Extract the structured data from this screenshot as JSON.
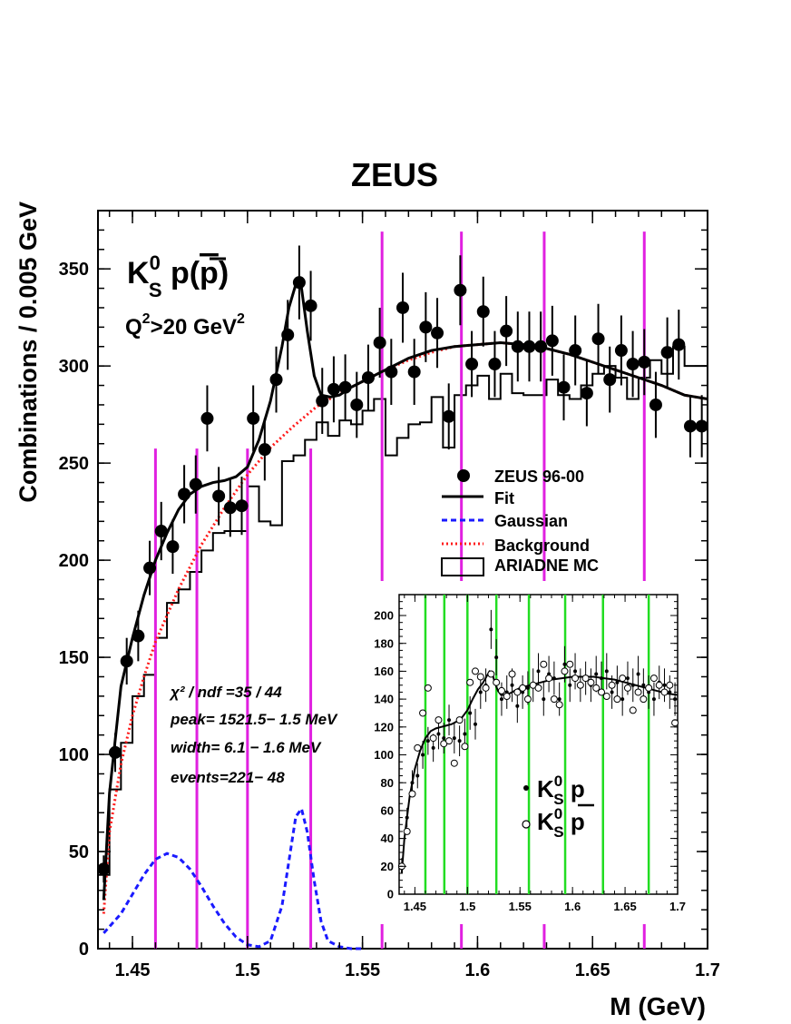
{
  "chart_data": [
    {
      "type": "scatter",
      "title": "ZEUS",
      "xlabel": "M (GeV)",
      "ylabel": "Combinations  / 0.005 GeV",
      "xlim": [
        1.435,
        1.7
      ],
      "ylim": [
        0,
        380
      ],
      "x_ticks": [
        "1.45",
        "1.5",
        "1.55",
        "1.6",
        "1.65",
        "1.7"
      ],
      "y_ticks": [
        "0",
        "50",
        "100",
        "150",
        "200",
        "250",
        "300",
        "350"
      ],
      "label_main": "K",
      "label_main_sup": "0",
      "label_main_sub": "S",
      "label_main_tail": " p(",
      "label_main_pbar": "p",
      "label_main_close": ")",
      "q2_label_prefix": "Q",
      "q2_sup": "2",
      "q2_mid": ">20 GeV",
      "q2_sup2": "2",
      "fit_stats": [
        "χ² / ndf  =35 / 44",
        "peak=  1521.5−  1.5  MeV",
        "width=  6.1   − 1.6  MeV",
        "events=221−   48"
      ],
      "legend": [
        {
          "label": "ZEUS 96-00",
          "style": "marker"
        },
        {
          "label": "Fit",
          "style": "solid-black"
        },
        {
          "label": "Gaussian",
          "style": "dashed-blue"
        },
        {
          "label": "Background",
          "style": "dotted-red"
        },
        {
          "label": "ARIADNE MC",
          "style": "box"
        }
      ],
      "series": [
        {
          "name": "ZEUS 96-00",
          "x": [
            1.4375,
            1.4425,
            1.4475,
            1.4525,
            1.4575,
            1.4625,
            1.4675,
            1.4725,
            1.4775,
            1.4825,
            1.4875,
            1.4925,
            1.4975,
            1.5025,
            1.5075,
            1.5125,
            1.5175,
            1.5225,
            1.5275,
            1.5325,
            1.5375,
            1.5425,
            1.5475,
            1.5525,
            1.5575,
            1.5625,
            1.5675,
            1.5725,
            1.5775,
            1.5825,
            1.5875,
            1.5925,
            1.5975,
            1.6025,
            1.6075,
            1.6125,
            1.6175,
            1.6225,
            1.6275,
            1.6325,
            1.6375,
            1.6425,
            1.6475,
            1.6525,
            1.6575,
            1.6625,
            1.6675,
            1.6725,
            1.6775,
            1.6825,
            1.6875,
            1.6925,
            1.6975
          ],
          "values": [
            41,
            101,
            148,
            161,
            196,
            215,
            207,
            234,
            239,
            273,
            233,
            227,
            228,
            273,
            257,
            293,
            316,
            343,
            331,
            282,
            288,
            289,
            280,
            294,
            312,
            297,
            330,
            297,
            320,
            317,
            274,
            339,
            301,
            328,
            301,
            318,
            310,
            310,
            310,
            313,
            289,
            308,
            286,
            314,
            293,
            308,
            301,
            302,
            280,
            307,
            311,
            269,
            269
          ],
          "errors": [
            7,
            10,
            12,
            13,
            14,
            15,
            14,
            15,
            15,
            17,
            15,
            15,
            15,
            17,
            16,
            17,
            18,
            19,
            18,
            17,
            17,
            17,
            17,
            17,
            18,
            17,
            18,
            17,
            18,
            18,
            17,
            18,
            17,
            18,
            17,
            18,
            18,
            18,
            18,
            18,
            17,
            18,
            17,
            18,
            17,
            18,
            17,
            17,
            17,
            18,
            18,
            16,
            16
          ]
        },
        {
          "name": "Fit",
          "x": [
            1.4375,
            1.44,
            1.445,
            1.45,
            1.455,
            1.46,
            1.465,
            1.47,
            1.475,
            1.48,
            1.485,
            1.49,
            1.495,
            1.5,
            1.505,
            1.51,
            1.515,
            1.518,
            1.521,
            1.5235,
            1.526,
            1.529,
            1.532,
            1.536,
            1.54,
            1.545,
            1.55,
            1.56,
            1.57,
            1.58,
            1.59,
            1.6,
            1.61,
            1.62,
            1.63,
            1.64,
            1.65,
            1.66,
            1.67,
            1.68,
            1.69,
            1.7
          ],
          "values": [
            25,
            80,
            135,
            160,
            182,
            200,
            214,
            226,
            234,
            238,
            240,
            241,
            243,
            248,
            262,
            282,
            310,
            330,
            342,
            340,
            318,
            295,
            285,
            284,
            285,
            289,
            292,
            298,
            304,
            308,
            310,
            311,
            312,
            311,
            309,
            306,
            302,
            298,
            294,
            290,
            285,
            283
          ]
        },
        {
          "name": "Gaussian",
          "x": [
            1.4375,
            1.445,
            1.45,
            1.455,
            1.46,
            1.465,
            1.47,
            1.475,
            1.48,
            1.485,
            1.49,
            1.495,
            1.5,
            1.505,
            1.51,
            1.515,
            1.518,
            1.521,
            1.5235,
            1.526,
            1.529,
            1.532,
            1.535,
            1.54,
            1.545,
            1.55
          ],
          "values": [
            8,
            18,
            28,
            38,
            46,
            49,
            47,
            41,
            32,
            22,
            13,
            6,
            2,
            1,
            4,
            22,
            45,
            68,
            72,
            60,
            35,
            14,
            4,
            1,
            0,
            0
          ]
        },
        {
          "name": "Background",
          "x": [
            1.4375,
            1.44,
            1.445,
            1.45,
            1.455,
            1.46,
            1.47,
            1.48,
            1.49,
            1.5,
            1.51,
            1.52,
            1.53,
            1.54,
            1.55,
            1.56,
            1.57,
            1.58,
            1.59,
            1.6,
            1.61,
            1.62,
            1.63,
            1.64,
            1.65,
            1.66,
            1.67,
            1.68,
            1.69,
            1.7
          ],
          "values": [
            18,
            60,
            95,
            120,
            140,
            158,
            185,
            208,
            227,
            244,
            258,
            269,
            279,
            286,
            292,
            298,
            303,
            307,
            310,
            311,
            312,
            311,
            309,
            306,
            302,
            298,
            294,
            290,
            285,
            283
          ]
        },
        {
          "name": "ARIADNE MC",
          "x": [
            1.435,
            1.44,
            1.445,
            1.45,
            1.455,
            1.46,
            1.465,
            1.47,
            1.475,
            1.48,
            1.485,
            1.49,
            1.495,
            1.5,
            1.505,
            1.51,
            1.515,
            1.52,
            1.525,
            1.53,
            1.535,
            1.54,
            1.545,
            1.55,
            1.555,
            1.56,
            1.565,
            1.57,
            1.575,
            1.58,
            1.585,
            1.59,
            1.595,
            1.6,
            1.605,
            1.61,
            1.615,
            1.62,
            1.625,
            1.63,
            1.635,
            1.64,
            1.645,
            1.65,
            1.655,
            1.66,
            1.665,
            1.67,
            1.675,
            1.68,
            1.685,
            1.69,
            1.695
          ],
          "values": [
            38,
            82,
            106,
            130,
            141,
            160,
            178,
            185,
            194,
            205,
            214,
            215,
            215,
            238,
            220,
            218,
            251,
            254,
            262,
            271,
            264,
            272,
            270,
            277,
            283,
            254,
            263,
            270,
            271,
            284,
            258,
            285,
            290,
            295,
            283,
            296,
            286,
            285,
            285,
            293,
            285,
            283,
            290,
            296,
            300,
            294,
            283,
            294,
            303,
            296,
            310,
            300,
            300
          ]
        }
      ],
      "vlines_x": [
        1.46,
        1.478,
        1.5,
        1.5275,
        1.5585,
        1.593,
        1.629,
        1.6725
      ],
      "vlines_top": [
        150,
        150,
        150,
        150,
        250,
        250,
        250,
        250
      ],
      "colors": {
        "fit": "#000000",
        "gaussian": "#1a1aff",
        "background": "#ff1a1a",
        "vlines": "#e020e0",
        "mc": "#000000"
      }
    },
    {
      "type": "scatter",
      "title": "",
      "xlim": [
        1.435,
        1.7
      ],
      "ylim": [
        0,
        215
      ],
      "x_ticks": [
        "1.45",
        "1.5",
        "1.55",
        "1.6",
        "1.65",
        "1.7"
      ],
      "y_ticks": [
        "0",
        "20",
        "40",
        "60",
        "80",
        "100",
        "120",
        "140",
        "160",
        "180",
        "200"
      ],
      "legend": [
        {
          "label": "K",
          "sup": "0",
          "sub": "S",
          "tail": " p",
          "style": "filled"
        },
        {
          "label": "K",
          "sup": "0",
          "sub": "S",
          "tail": " p",
          "style": "open",
          "overline": true
        }
      ],
      "series": [
        {
          "name": "K0S p",
          "x": [
            1.4375,
            1.4425,
            1.4475,
            1.4525,
            1.4575,
            1.4625,
            1.4675,
            1.4725,
            1.4775,
            1.4825,
            1.4875,
            1.4925,
            1.4975,
            1.5025,
            1.5075,
            1.5125,
            1.5175,
            1.5225,
            1.5275,
            1.5325,
            1.5375,
            1.5425,
            1.5475,
            1.5525,
            1.5575,
            1.5625,
            1.5675,
            1.5725,
            1.5775,
            1.5825,
            1.5875,
            1.5925,
            1.5975,
            1.6025,
            1.6075,
            1.6125,
            1.6175,
            1.6225,
            1.6275,
            1.6325,
            1.6375,
            1.6425,
            1.6475,
            1.6525,
            1.6575,
            1.6625,
            1.6675,
            1.6725,
            1.6775,
            1.6825,
            1.6875,
            1.6925,
            1.6975
          ],
          "values": [
            21,
            55,
            80,
            85,
            100,
            110,
            105,
            115,
            112,
            125,
            112,
            110,
            115,
            130,
            122,
            145,
            150,
            190,
            170,
            140,
            145,
            150,
            135,
            145,
            148,
            150,
            160,
            140,
            158,
            155,
            140,
            165,
            150,
            160,
            150,
            155,
            150,
            158,
            155,
            160,
            145,
            152,
            140,
            155,
            150,
            158,
            150,
            145,
            140,
            152,
            150,
            145,
            140
          ],
          "errors": [
            5,
            7,
            9,
            9,
            10,
            10,
            10,
            11,
            11,
            11,
            11,
            11,
            11,
            12,
            11,
            12,
            12,
            14,
            13,
            12,
            12,
            12,
            12,
            12,
            12,
            12,
            13,
            12,
            13,
            12,
            12,
            13,
            12,
            13,
            12,
            12,
            12,
            13,
            12,
            13,
            12,
            12,
            12,
            12,
            12,
            13,
            12,
            12,
            12,
            12,
            12,
            12,
            12
          ]
        },
        {
          "name": "K0S pbar",
          "x": [
            1.4375,
            1.4425,
            1.4475,
            1.4525,
            1.4575,
            1.4625,
            1.4675,
            1.4725,
            1.4775,
            1.4825,
            1.4875,
            1.4925,
            1.4975,
            1.5025,
            1.5075,
            1.5125,
            1.5175,
            1.5225,
            1.5275,
            1.5325,
            1.5375,
            1.5425,
            1.5475,
            1.5525,
            1.5575,
            1.5625,
            1.5675,
            1.5725,
            1.5775,
            1.5825,
            1.5875,
            1.5925,
            1.5975,
            1.6025,
            1.6075,
            1.6125,
            1.6175,
            1.6225,
            1.6275,
            1.6325,
            1.6375,
            1.6425,
            1.6475,
            1.6525,
            1.6575,
            1.6625,
            1.6675,
            1.6725,
            1.6775,
            1.6825,
            1.6875,
            1.6925,
            1.6975
          ],
          "values": [
            20,
            45,
            72,
            105,
            130,
            148,
            112,
            125,
            108,
            110,
            94,
            125,
            106,
            152,
            160,
            156,
            148,
            158,
            152,
            146,
            142,
            158,
            145,
            148,
            140,
            150,
            148,
            165,
            155,
            140,
            136,
            160,
            165,
            155,
            150,
            155,
            152,
            148,
            145,
            142,
            150,
            140,
            155,
            148,
            132,
            145,
            140,
            148,
            155,
            150,
            145,
            150,
            123
          ]
        },
        {
          "name": "Fit",
          "x": [
            1.4375,
            1.44,
            1.445,
            1.45,
            1.455,
            1.46,
            1.465,
            1.47,
            1.475,
            1.48,
            1.485,
            1.49,
            1.495,
            1.5,
            1.505,
            1.51,
            1.515,
            1.518,
            1.521,
            1.5235,
            1.526,
            1.529,
            1.532,
            1.536,
            1.54,
            1.545,
            1.55,
            1.56,
            1.57,
            1.58,
            1.59,
            1.6,
            1.61,
            1.62,
            1.63,
            1.64,
            1.65,
            1.66,
            1.67,
            1.68,
            1.69,
            1.7
          ],
          "values": [
            15,
            40,
            70,
            90,
            103,
            112,
            117,
            119,
            120,
            121,
            122,
            124,
            127,
            132,
            140,
            147,
            152,
            156,
            160,
            159,
            152,
            146,
            143,
            143,
            144,
            146,
            148,
            150,
            152,
            154,
            155,
            156,
            156,
            156,
            155,
            154,
            152,
            150,
            148,
            146,
            144,
            143
          ]
        }
      ],
      "vlines_x": [
        1.46,
        1.478,
        1.5,
        1.5275,
        1.5585,
        1.593,
        1.629,
        1.6725
      ],
      "colors": {
        "vlines": "#22dd22"
      }
    }
  ]
}
